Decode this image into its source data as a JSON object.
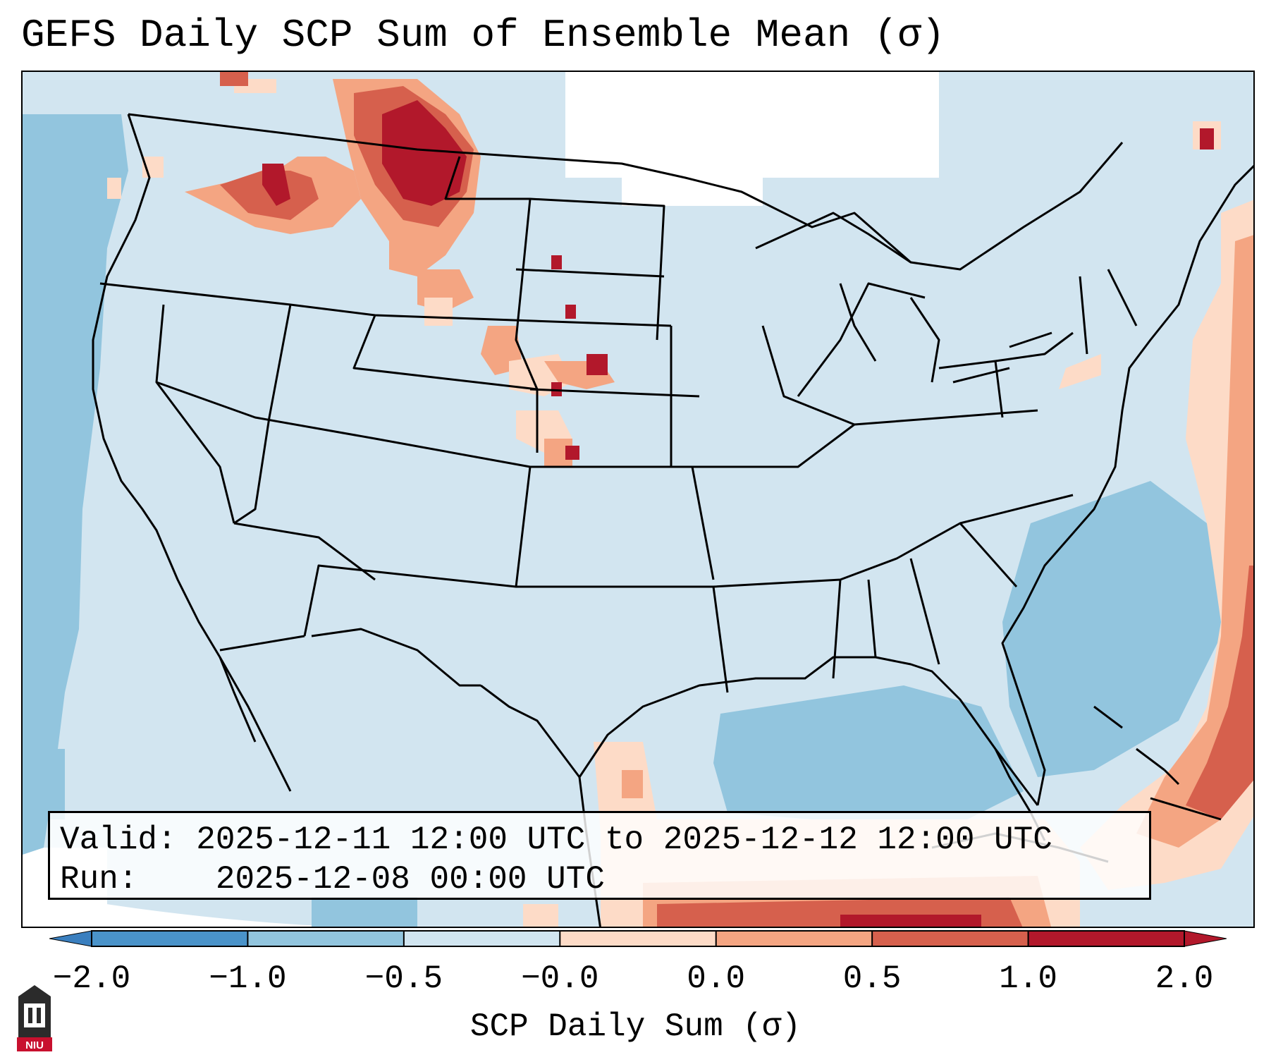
{
  "title": "GEFS Daily SCP Sum of Ensemble Mean (σ)",
  "info": {
    "valid_label": "Valid:",
    "valid_value": "2025-12-11 12:00 UTC to 2025-12-12 12:00 UTC",
    "run_label": "Run:",
    "run_value": "2025-12-08 00:00 UTC"
  },
  "colorbar": {
    "ticks": [
      "−2.0",
      "−1.0",
      "−0.5",
      "−0.0",
      "0.0",
      "0.5",
      "1.0",
      "2.0"
    ],
    "label": "SCP Daily Sum (σ)",
    "bins": [
      {
        "range": "< -2.0",
        "color": "#3a7fbf"
      },
      {
        "range": "-2.0 to -1.0",
        "color": "#4a93c9"
      },
      {
        "range": "-1.0 to -0.5",
        "color": "#92c5de"
      },
      {
        "range": "-0.5 to -0.0",
        "color": "#d1e5f0"
      },
      {
        "range": "0.0 to 0.5",
        "color": "#fddbc7"
      },
      {
        "range": "0.5 to 1.0",
        "color": "#f4a582"
      },
      {
        "range": "1.0 to 2.0",
        "color": "#d6604d"
      },
      {
        "range": "> 2.0",
        "color": "#b2182b"
      }
    ]
  },
  "logo": {
    "name": "NIU",
    "text": "NIU"
  },
  "colors": {
    "background": "#d2e5f0",
    "strong_negative": "#92c5de",
    "weak_positive": "#fddbc7",
    "moderate_positive": "#f4a582",
    "strong_positive": "#d6604d",
    "extreme_positive": "#b2182b"
  }
}
